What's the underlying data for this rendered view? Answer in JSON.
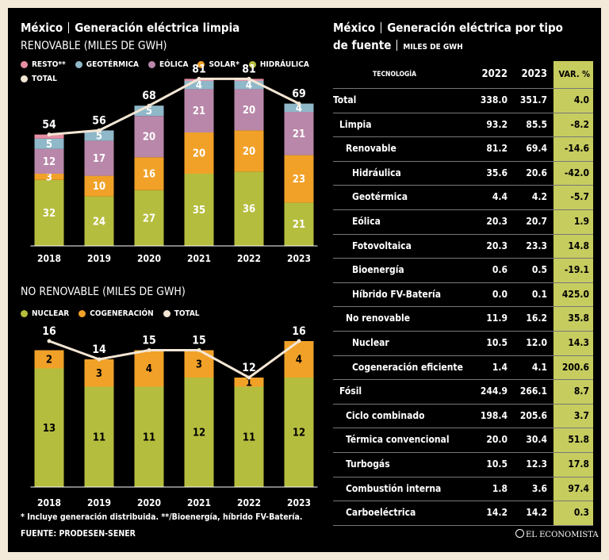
{
  "renewable_chart": {
    "main_title": "México",
    "main_title_rest": "Generación eléctrica limpia",
    "subtitle": "RENOVABLE (MILES DE GWH)",
    "legend": [
      "RESTO**",
      "GEOTÉRMICA",
      "EÓLICA",
      "SOLAR*",
      "HIDRÁULICA",
      "TOTAL"
    ]
  },
  "nonrenewable_chart": {
    "subtitle": "NO RENOVABLE (MILES DE GWH)",
    "legend": [
      "NUCLEAR",
      "COGENERACIÓN",
      "TOTAL"
    ]
  },
  "table": {
    "title_line1_a": "México",
    "title_line1_b": "Generación eléctrica por tipo",
    "title_line2_a": "de fuente",
    "title_line2_b": "MILES DE GWH",
    "headers": {
      "tech": "TECNOLOGÍA",
      "y2022": "2022",
      "y2023": "2023",
      "var": "VAR. %"
    },
    "rows": [
      {
        "name": "Total",
        "indent": 0,
        "v22": "338.0",
        "v23": "351.7",
        "var": "4.0"
      },
      {
        "name": "Limpia",
        "indent": 1,
        "v22": "93.2",
        "v23": "85.5",
        "var": "-8.2"
      },
      {
        "name": "Renovable",
        "indent": 2,
        "v22": "81.2",
        "v23": "69.4",
        "var": "-14.6"
      },
      {
        "name": "Hidráulica",
        "indent": 3,
        "v22": "35.6",
        "v23": "20.6",
        "var": "-42.0"
      },
      {
        "name": "Geotérmica",
        "indent": 3,
        "v22": "4.4",
        "v23": "4.2",
        "var": "-5.7"
      },
      {
        "name": "Eólica",
        "indent": 3,
        "v22": "20.3",
        "v23": "20.7",
        "var": "1.9"
      },
      {
        "name": "Fotovoltaica",
        "indent": 3,
        "v22": "20.3",
        "v23": "23.3",
        "var": "14.8"
      },
      {
        "name": "Bioenergía",
        "indent": 3,
        "v22": "0.6",
        "v23": "0.5",
        "var": "-19.1"
      },
      {
        "name": "Híbrido FV-Batería",
        "indent": 3,
        "v22": "0.0",
        "v23": "0.1",
        "var": "425.0"
      },
      {
        "name": "No renovable",
        "indent": 2,
        "v22": "11.9",
        "v23": "16.2",
        "var": "35.8"
      },
      {
        "name": "Nuclear",
        "indent": 3,
        "v22": "10.5",
        "v23": "12.0",
        "var": "14.3"
      },
      {
        "name": "Cogeneración eficiente",
        "indent": 3,
        "v22": "1.4",
        "v23": "4.1",
        "var": "200.6"
      },
      {
        "name": "Fósil",
        "indent": 1,
        "v22": "244.9",
        "v23": "266.1",
        "var": "8.7"
      },
      {
        "name": "Ciclo combinado",
        "indent": 2,
        "v22": "198.4",
        "v23": "205.6",
        "var": "3.7"
      },
      {
        "name": "Térmica convencional",
        "indent": 2,
        "v22": "20.0",
        "v23": "30.4",
        "var": "51.8"
      },
      {
        "name": "Turbogás",
        "indent": 2,
        "v22": "10.5",
        "v23": "12.3",
        "var": "17.8"
      },
      {
        "name": "Combustión interna",
        "indent": 2,
        "v22": "1.8",
        "v23": "3.6",
        "var": "97.4"
      },
      {
        "name": "Carboeléctrica",
        "indent": 2,
        "v22": "14.2",
        "v23": "14.2",
        "var": "0.3"
      }
    ]
  },
  "footer": {
    "note": "* Incluye generación distribuida. **/Bioenergía, híbrido FV-Batería.",
    "source": "FUENTE: PRODESEN-SENER",
    "logo": "EL ECONOMISTA"
  },
  "colors": {
    "hidraulica": "#b5bd3e",
    "solar": "#f1a128",
    "eolica": "#b987a9",
    "geotermica": "#8fb8c9",
    "resto": "#e58ea4",
    "nuclear": "#b5bd3e",
    "cogeneracion": "#f1a128",
    "total": "#f4e6d4",
    "table_var_bg": "#c7cc5f"
  },
  "chart_data": [
    {
      "type": "bar",
      "title": "RENOVABLE (MILES DE GWH)",
      "stacked": true,
      "categories": [
        "2018",
        "2019",
        "2020",
        "2021",
        "2022",
        "2023"
      ],
      "series": [
        {
          "name": "HIDRÁULICA",
          "values": [
            32,
            24,
            27,
            35,
            36,
            21
          ]
        },
        {
          "name": "SOLAR*",
          "values": [
            3,
            10,
            16,
            20,
            20,
            23
          ]
        },
        {
          "name": "EÓLICA",
          "values": [
            12,
            17,
            20,
            21,
            20,
            21
          ]
        },
        {
          "name": "GEOTÉRMICA",
          "values": [
            5,
            5,
            5,
            4,
            4,
            4
          ]
        },
        {
          "name": "RESTO**",
          "values": [
            2,
            0,
            0,
            1,
            1,
            0
          ]
        }
      ],
      "total": {
        "name": "TOTAL",
        "values": [
          54,
          56,
          68,
          81,
          81,
          69
        ]
      },
      "ylim": [
        0,
        95
      ]
    },
    {
      "type": "bar",
      "title": "NO RENOVABLE (MILES DE GWH)",
      "stacked": true,
      "categories": [
        "2018",
        "2019",
        "2020",
        "2021",
        "2022",
        "2023"
      ],
      "series": [
        {
          "name": "NUCLEAR",
          "values": [
            13,
            11,
            11,
            12,
            11,
            12
          ]
        },
        {
          "name": "COGENERACIÓN",
          "values": [
            2,
            3,
            4,
            3,
            1,
            4
          ]
        }
      ],
      "total": {
        "name": "TOTAL",
        "values": [
          16,
          14,
          15,
          15,
          12,
          16
        ]
      },
      "ylim": [
        0,
        19
      ]
    }
  ]
}
